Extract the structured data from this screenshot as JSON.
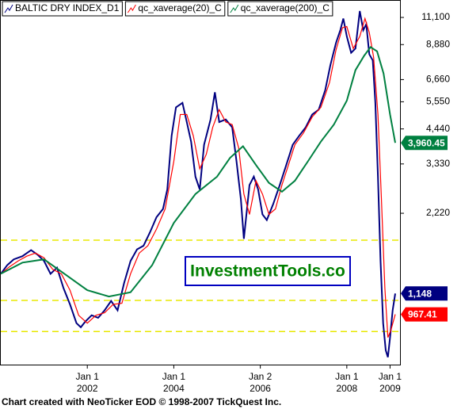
{
  "chart_data": {
    "type": "line",
    "legend": [
      "BALTIC DRY INDEX_D1",
      "qc_xaverage(20)_C",
      "qc_xaverage(200)_C"
    ],
    "annotation": "InvestmentTools.co",
    "footer": "Chart created with NeoTicker EOD © 1998-2007 TickQuest Inc.",
    "log_scale": true,
    "xlim": [
      2000.0,
      2009.23
    ],
    "ylim": [
      640,
      12400
    ],
    "xticks": [
      {
        "value": 2002,
        "label": "Jan 1 2002"
      },
      {
        "value": 2004,
        "label": "Jan 1 2004"
      },
      {
        "value": 2006,
        "label": "Jan 2 2006"
      },
      {
        "value": 2008,
        "label": "Jan 1 2008"
      },
      {
        "value": 2009,
        "label": "Jan 1 2009"
      }
    ],
    "yticks": [
      {
        "value": 2220,
        "label": "2,220"
      },
      {
        "value": 3330,
        "label": "3,330"
      },
      {
        "value": 4440,
        "label": "4,440"
      },
      {
        "value": 5550,
        "label": "5,550"
      },
      {
        "value": 6660,
        "label": "6,660"
      },
      {
        "value": 8880,
        "label": "8,880"
      },
      {
        "value": 11100,
        "label": "11,100"
      }
    ],
    "hlines": [
      1780,
      1085,
      840
    ],
    "hline_color": "#e8e800",
    "series": [
      {
        "name": "BALTIC DRY INDEX_D1",
        "color": "#000080",
        "end_label": "1,148",
        "x": [
          2000.0,
          2000.15,
          2000.3,
          2000.5,
          2000.7,
          2000.85,
          2001.0,
          2001.15,
          2001.3,
          2001.45,
          2001.6,
          2001.75,
          2001.85,
          2001.95,
          2002.1,
          2002.25,
          2002.4,
          2002.55,
          2002.7,
          2002.85,
          2003.0,
          2003.15,
          2003.3,
          2003.45,
          2003.6,
          2003.75,
          2003.85,
          2003.95,
          2004.05,
          2004.2,
          2004.3,
          2004.4,
          2004.5,
          2004.6,
          2004.7,
          2004.85,
          2004.95,
          2005.05,
          2005.2,
          2005.35,
          2005.45,
          2005.55,
          2005.62,
          2005.75,
          2005.85,
          2005.95,
          2006.05,
          2006.15,
          2006.3,
          2006.45,
          2006.6,
          2006.75,
          2006.9,
          2007.05,
          2007.2,
          2007.35,
          2007.5,
          2007.62,
          2007.75,
          2007.85,
          2007.92,
          2008.0,
          2008.1,
          2008.2,
          2008.3,
          2008.38,
          2008.45,
          2008.52,
          2008.6,
          2008.66,
          2008.72,
          2008.78,
          2008.84,
          2008.9,
          2008.95,
          2009.0,
          2009.06,
          2009.12
        ],
        "values": [
          1350,
          1450,
          1520,
          1560,
          1640,
          1580,
          1500,
          1350,
          1420,
          1200,
          1050,
          900,
          870,
          910,
          960,
          940,
          1000,
          1080,
          1000,
          1250,
          1500,
          1650,
          1700,
          1900,
          2150,
          2300,
          2700,
          4200,
          5300,
          5500,
          4700,
          4000,
          3000,
          2700,
          3900,
          4800,
          6000,
          4700,
          4800,
          4500,
          3400,
          2500,
          1800,
          2800,
          3000,
          2700,
          2200,
          2100,
          2400,
          2800,
          3300,
          3900,
          4200,
          4500,
          5000,
          5200,
          6100,
          7500,
          9000,
          10000,
          11000,
          9500,
          8300,
          8600,
          11700,
          10000,
          10500,
          8200,
          7800,
          5500,
          3000,
          1500,
          900,
          720,
          680,
          800,
          1000,
          1148
        ]
      },
      {
        "name": "qc_xaverage(20)_C",
        "color": "#ff0000",
        "end_label": "967.41",
        "x": [
          2000.0,
          2000.2,
          2000.4,
          2000.6,
          2000.8,
          2001.0,
          2001.2,
          2001.4,
          2001.6,
          2001.8,
          2002.0,
          2002.2,
          2002.4,
          2002.6,
          2002.8,
          2003.0,
          2003.2,
          2003.4,
          2003.6,
          2003.8,
          2004.0,
          2004.15,
          2004.3,
          2004.45,
          2004.6,
          2004.75,
          2004.9,
          2005.05,
          2005.2,
          2005.35,
          2005.5,
          2005.62,
          2005.75,
          2005.9,
          2006.05,
          2006.2,
          2006.35,
          2006.5,
          2006.65,
          2006.8,
          2007.0,
          2007.2,
          2007.4,
          2007.6,
          2007.75,
          2007.9,
          2008.0,
          2008.15,
          2008.3,
          2008.42,
          2008.52,
          2008.62,
          2008.72,
          2008.8,
          2008.88,
          2008.95,
          2009.02,
          2009.12
        ],
        "values": [
          1350,
          1430,
          1500,
          1560,
          1600,
          1540,
          1400,
          1350,
          1180,
          960,
          900,
          960,
          980,
          1050,
          1060,
          1350,
          1600,
          1700,
          1950,
          2300,
          3400,
          5000,
          5000,
          4200,
          3200,
          3600,
          4500,
          5200,
          4700,
          4600,
          3800,
          2600,
          2200,
          2900,
          2600,
          2200,
          2300,
          2800,
          3300,
          3900,
          4300,
          4900,
          5300,
          6500,
          8500,
          10200,
          10300,
          8600,
          9500,
          11000,
          9800,
          8000,
          5000,
          2500,
          1200,
          800,
          850,
          967.41
        ]
      },
      {
        "name": "qc_xaverage(200)_C",
        "color": "#008040",
        "end_label": "3,960.45",
        "x": [
          2000.0,
          2000.5,
          2001.0,
          2001.5,
          2002.0,
          2002.5,
          2003.0,
          2003.5,
          2004.0,
          2004.5,
          2005.0,
          2005.3,
          2005.6,
          2005.9,
          2006.2,
          2006.5,
          2006.8,
          2007.1,
          2007.4,
          2007.7,
          2008.0,
          2008.2,
          2008.4,
          2008.55,
          2008.7,
          2008.85,
          2009.0,
          2009.12
        ],
        "values": [
          1350,
          1480,
          1520,
          1340,
          1180,
          1120,
          1160,
          1450,
          2050,
          2600,
          3000,
          3500,
          3850,
          3300,
          2850,
          2650,
          2900,
          3400,
          4000,
          4600,
          5600,
          7200,
          8100,
          8700,
          8400,
          7000,
          5000,
          3960.45
        ]
      }
    ]
  }
}
